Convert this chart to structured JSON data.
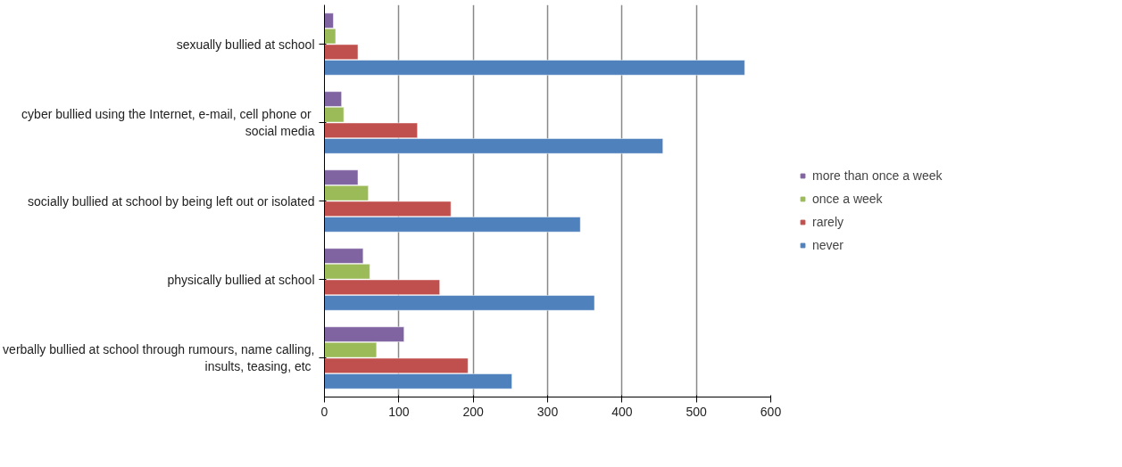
{
  "chart_data": {
    "type": "bar",
    "orientation": "horizontal",
    "categories": [
      "sexually bullied at school",
      "cyber bullied using the  Internet, e-mail, cell phone or social media",
      "socially bullied at school by being left out or isolated",
      "physically bullied at school",
      "verbally bullied at school through rumours, name calling, insults, teasing,  etc"
    ],
    "series": [
      {
        "name": "more than once a week",
        "color": "#8064a2",
        "values": [
          12,
          23,
          45,
          52,
          107
        ]
      },
      {
        "name": "once a week",
        "color": "#9bbb59",
        "values": [
          15,
          26,
          59,
          61,
          70
        ]
      },
      {
        "name": "rarely",
        "color": "#c0504d",
        "values": [
          45,
          125,
          170,
          155,
          193
        ]
      },
      {
        "name": "never",
        "color": "#4f81bd",
        "values": [
          565,
          455,
          344,
          363,
          252
        ]
      }
    ],
    "xlim": [
      0,
      600
    ],
    "xticks": [
      0,
      100,
      200,
      300,
      400,
      500,
      600
    ],
    "grid": "x",
    "legend": "right"
  }
}
